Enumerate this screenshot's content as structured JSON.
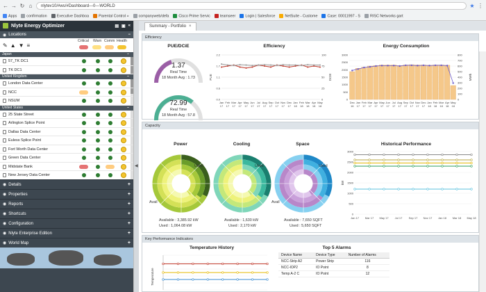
{
  "browser": {
    "url": "nlytev10/#ws/#Dashboard---0---WORLD",
    "bookmarks": [
      "Apps",
      "confirmation",
      "Executive Dashboa",
      "Parental Control »",
      "companyweb/defa",
      "Cisco Prime Servic",
      "teamseer",
      "Login | Salesforce",
      "NetSuite - Custome",
      "Case: 00011997 - S",
      "RISC Networks gart"
    ]
  },
  "sidebar": {
    "app_title": "Nlyte Energy Optimizer",
    "locations_label": "Locations",
    "col_headers": [
      "Critical",
      "Warn",
      "Comm",
      "Health"
    ],
    "groups": [
      {
        "name": "Japan",
        "sites": [
          "57_TK DC1",
          "TK DC1"
        ]
      },
      {
        "name": "United Kingdom",
        "sites": [
          "London Data Center",
          "NCC",
          "NSUM"
        ]
      },
      {
        "name": "United States",
        "sites": [
          "25 State Street",
          "Arlington Splice Point",
          "Dallas Data Center",
          "Euless Splice Point",
          "Fort Worth Data Center",
          "Green Data Center",
          "Midstate Bank",
          "New Jersey Data Center"
        ]
      }
    ],
    "panels": [
      "Details",
      "Properties",
      "Reports",
      "Shortcuts",
      "Configuration",
      "Nlyte Enterprise Edition",
      "World Map"
    ]
  },
  "main": {
    "tab_label": "Summary - Portfolio",
    "tab_close": "×",
    "efficiency": {
      "section_label": "Efficiency",
      "pue_title": "PUE/DCiE",
      "pue_value": "1.37",
      "pue_caption": "Real Time",
      "pue_avg": "18 Month Avg : 1.73",
      "dcie_value": "72.99",
      "dcie_caption": "Real Time",
      "dcie_avg": "18 Month Avg : 57.8",
      "efficiency_title": "Efficiency",
      "energy_title": "Energy Consumption",
      "eff_ylabel_left": "PUE",
      "eff_ylabel_right": "DCIE",
      "energy_ylabel": "MWh"
    },
    "capacity": {
      "section_label": "Capacity",
      "power_title": "Power",
      "cooling_title": "Cooling",
      "space_title": "Space",
      "used_label": "Used",
      "avail_label": "Avail",
      "power_available": "Available : 3,385.92 kW",
      "power_used": "Used : 1,064.08 kW",
      "cooling_available": "Available : 1,630 kW",
      "cooling_used": "Used : 2,170 kW",
      "space_available": "Available : 7,650 SQFT",
      "space_used": "Used : 5,650 SQFT",
      "historical_title": "Historical Performance",
      "hist_ylabel": "kW"
    },
    "kpi": {
      "section_label": "Key Performance Indicators",
      "temp_title": "Temperature History",
      "temp_ylabel": "Temperature",
      "alarms_title": "Top 5 Alarms",
      "alarm_headers": [
        "Device Name",
        "Device Type",
        "Number of Alarms"
      ],
      "alarm_rows": [
        [
          "NCC-Strip A2",
          "Power Strip",
          "116"
        ],
        [
          "NCC-IOP2",
          "IO Point",
          "8"
        ],
        [
          "Temp A-2 C",
          "IO Point",
          "12"
        ]
      ]
    }
  },
  "chart_data": [
    {
      "type": "line",
      "title": "Efficiency",
      "x": [
        "Jan 17",
        "Feb 17",
        "Mar 17",
        "Apr 17",
        "May 17",
        "Jun 17",
        "Jul 17",
        "Aug 17",
        "Sep 17",
        "Oct 17",
        "Nov 17",
        "Dec 17",
        "Jan 18",
        "Feb 18",
        "Mar 18",
        "Apr 18",
        "May 18"
      ],
      "ylabel": "PUE",
      "ylim": [
        0,
        2.2
      ],
      "y2label": "DCIE",
      "y2lim": [
        0,
        100
      ],
      "series": [
        {
          "values": [
            1.6,
            1.65,
            1.7,
            1.6,
            1.55,
            1.6,
            1.7,
            1.65,
            1.6,
            1.7,
            1.65,
            1.6,
            1.65,
            1.7,
            1.6,
            1.65,
            1.6
          ],
          "color": "#c0392b"
        },
        {
          "values": [
            1.75,
            1.7,
            1.68,
            1.72,
            1.7,
            1.68,
            1.7,
            1.72,
            1.7,
            1.68,
            1.72,
            1.7,
            1.7,
            1.68,
            1.72,
            1.7,
            1.7
          ],
          "color": "#999999"
        }
      ],
      "color": "#c0392b"
    },
    {
      "type": "bar",
      "title": "Energy Consumption",
      "categories": [
        "Dec 16",
        "Jan 17",
        "Feb 17",
        "Mar 17",
        "Apr 17",
        "May 17",
        "Jun 17",
        "Jul 17",
        "Aug 17",
        "Sep 17",
        "Oct 17",
        "Nov 17",
        "Dec 17",
        "Jan 18",
        "Feb 18",
        "Mar 18",
        "Apr 18",
        "May 18"
      ],
      "values": [
        500,
        560,
        580,
        600,
        610,
        620,
        620,
        620,
        610,
        620,
        625,
        620,
        620,
        615,
        620,
        620,
        615,
        250
      ],
      "line_values": [
        1950,
        2050,
        2150,
        2200,
        2250,
        2280,
        2280,
        2280,
        2250,
        2300,
        2300,
        2280,
        2300,
        2280,
        2300,
        2300,
        2280,
        1100
      ],
      "ylabel": "MWh",
      "ylim": [
        0,
        800
      ],
      "y2lim": [
        0,
        3000
      ],
      "color": "#f5c88a"
    },
    {
      "type": "line",
      "title": "Historical Performance",
      "x": [
        "Jan 17",
        "Mar 17",
        "May 17",
        "Jul 17",
        "Sep 17",
        "Nov 17",
        "Jan 18",
        "Mar 18",
        "May 18"
      ],
      "ylabel": "kW",
      "ylim": [
        0,
        3000
      ],
      "series": [
        {
          "values": [
            2850,
            2850,
            2850,
            2850,
            2850,
            2850,
            2850,
            2850,
            2850
          ],
          "color": "#888888"
        },
        {
          "values": [
            2600,
            2600,
            2600,
            2600,
            2600,
            2600,
            2600,
            2600,
            2600
          ],
          "color": "#b5a642"
        },
        {
          "values": [
            2450,
            2450,
            2450,
            2450,
            2450,
            2450,
            2450,
            2450,
            2450
          ],
          "color": "#e6b800"
        },
        {
          "values": [
            2300,
            2300,
            2300,
            2300,
            2300,
            2300,
            2300,
            2300,
            2300
          ],
          "color": "#2e9e5b"
        },
        {
          "values": [
            1200,
            1200,
            1200,
            1200,
            1200,
            1200,
            1200,
            1200,
            1200
          ],
          "color": "#5bc0de"
        }
      ]
    },
    {
      "type": "line",
      "title": "Temperature History",
      "ylabel": "Temperature",
      "series": [
        {
          "values": [
            80,
            80,
            80,
            80,
            80,
            80,
            80,
            80
          ],
          "color": "#c0392b"
        },
        {
          "values": [
            70,
            70,
            70,
            70,
            70,
            70,
            70,
            70
          ],
          "color": "#e6b800"
        },
        {
          "values": [
            62,
            62,
            62,
            62,
            62,
            62,
            62,
            62
          ],
          "color": "#3b8bd0"
        }
      ]
    }
  ]
}
